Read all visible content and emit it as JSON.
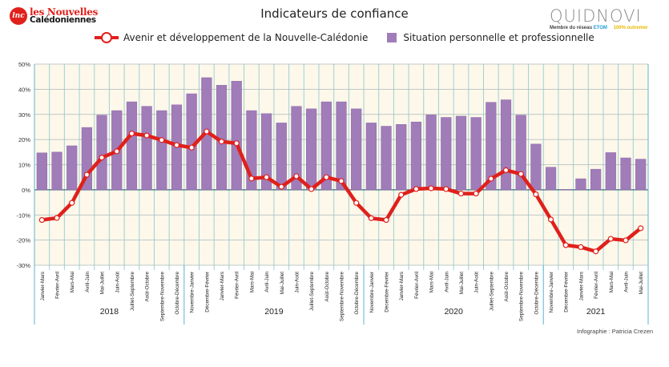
{
  "header": {
    "logo_left": {
      "badge": "lnc",
      "badge_sub": ".nc",
      "line1": "les Nouvelles",
      "line2": "Calédoniennes"
    },
    "logo_right": {
      "word": "QUIDNOVI",
      "tagline": "Membre du réseau",
      "network": "ETOM",
      "slogan": "100% outremer"
    }
  },
  "credit": "Infographie : Patricia Crezen",
  "colors": {
    "line": "#e0201b",
    "bar": "#a07cb9",
    "bar_edge": "#8e6aa8",
    "plot_bg": "#fdf8ea",
    "grid_v": "#9fd0d6",
    "grid_h": "#a9b9bd",
    "axis": "#3c6f7a"
  },
  "chart_data": {
    "type": "bar+line",
    "title": "Indicateurs de confiance",
    "xlabel": "",
    "ylabel": "",
    "ylim": [
      -30,
      50
    ],
    "yticks": [
      50,
      40,
      30,
      20,
      10,
      0,
      -10,
      -20,
      -30
    ],
    "ytick_labels": [
      "50%",
      "40%",
      "30%",
      "20%",
      "10%",
      "0%",
      "-10%",
      "-20%",
      "-30%"
    ],
    "grid": true,
    "legend_position": "top",
    "categories": [
      "Janvier-Mars",
      "Février-Avril",
      "Mars-Mai",
      "Avril-Juin",
      "Mai-Juillet",
      "Juin-Août",
      "Juillet-Septembre",
      "Août-Octobre",
      "Septembre-Novembre",
      "Octobre-Décembre",
      "Novembre-Janvier",
      "Décembre-Février",
      "Janvier-Mars",
      "Février-Avril",
      "Mars-Mai",
      "Avril-Juin",
      "Mai-Juillet",
      "Juin-Août",
      "Juillet-Septembre",
      "Août-Octobre",
      "Septembre-Novembre",
      "Octobre-Décembre",
      "Novembre-Janvier",
      "Décembre-Février",
      "Janvier-Mars",
      "Février-Avril",
      "Mars-Mai",
      "Avril-Juin",
      "Mai-Juillet",
      "Juin-Août",
      "Juillet-Septembre",
      "Août-Octobre",
      "Septembre-Novembre",
      "Octobre-Décembre",
      "Novembre-Janvier",
      "Décembre-Février",
      "Janvier-Mars",
      "Février-Avril",
      "Mars-Mai",
      "Avril-Juin",
      "Mai-Juillet"
    ],
    "year_groups": [
      {
        "label": "2018",
        "count": 10
      },
      {
        "label": "2019",
        "count": 12
      },
      {
        "label": "2020",
        "count": 12
      },
      {
        "label": "2021",
        "count": 7
      }
    ],
    "series": [
      {
        "name": "Situation personnelle et professionnelle",
        "kind": "bar",
        "values": [
          14.7,
          15.0,
          17.5,
          24.8,
          29.7,
          31.5,
          35.0,
          33.2,
          31.5,
          33.8,
          38.2,
          44.6,
          41.6,
          43.2,
          31.5,
          30.3,
          26.6,
          33.2,
          32.2,
          35.0,
          35.0,
          32.2,
          26.6,
          25.3,
          26.0,
          27.0,
          29.8,
          28.8,
          29.3,
          28.8,
          34.8,
          35.8,
          29.7,
          18.2,
          9.0,
          0.2,
          4.4,
          8.2,
          14.8,
          12.7,
          12.2
        ]
      },
      {
        "name": "Avenir et développement de la Nouvelle-Calédonie",
        "kind": "line",
        "values": [
          -12.0,
          -11.2,
          -5.2,
          6.0,
          12.8,
          15.3,
          22.4,
          21.6,
          19.8,
          17.8,
          16.8,
          23.2,
          19.2,
          18.5,
          4.5,
          5.0,
          1.2,
          5.4,
          0.3,
          5.0,
          3.5,
          -5.2,
          -11.3,
          -12.0,
          -2.0,
          0.3,
          0.6,
          0.3,
          -1.5,
          -1.5,
          4.4,
          7.8,
          6.3,
          -1.8,
          -11.8,
          -22.0,
          -22.8,
          -24.5,
          -19.5,
          -20.1,
          -15.3
        ]
      }
    ]
  }
}
